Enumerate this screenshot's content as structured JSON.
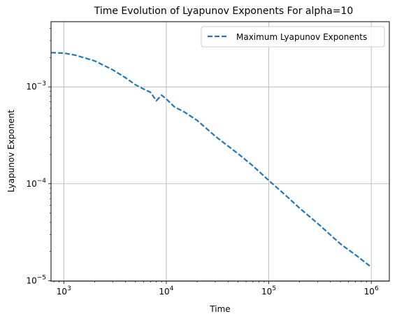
{
  "chart_data": {
    "type": "line",
    "title": "Time Evolution of Lyapunov Exponents For alpha=10",
    "xlabel": "Time",
    "ylabel": "Lyapunov Exponent",
    "xscale": "log",
    "yscale": "log",
    "xlim": [
      750,
      1500000
    ],
    "ylim": [
      9.9e-06,
      0.0047
    ],
    "x_ticks": [
      {
        "value": 1000,
        "base": "10",
        "exp": "3"
      },
      {
        "value": 10000,
        "base": "10",
        "exp": "4"
      },
      {
        "value": 100000,
        "base": "10",
        "exp": "5"
      },
      {
        "value": 1000000,
        "base": "10",
        "exp": "6"
      }
    ],
    "y_ticks": [
      {
        "value": 1e-05,
        "base": "10",
        "exp": "−5"
      },
      {
        "value": 0.0001,
        "base": "10",
        "exp": "−4"
      },
      {
        "value": 0.001,
        "base": "10",
        "exp": "−3"
      }
    ],
    "grid": true,
    "legend_position": "top-right",
    "series": [
      {
        "name": "Maximum Lyapunov Exponents",
        "color": "#1f77b4",
        "linestyle": "dashed",
        "x": [
          750,
          1000,
          1300,
          2000,
          3000,
          4000,
          5000,
          6000,
          7000,
          8000,
          9000,
          10000,
          12000,
          15000,
          20000,
          30000,
          40000,
          50000,
          70000,
          100000,
          150000,
          200000,
          300000,
          500000,
          700000,
          1000000
        ],
        "y": [
          0.00225,
          0.00223,
          0.00212,
          0.00185,
          0.0015,
          0.00124,
          0.00105,
          0.00095,
          0.00088,
          0.00072,
          0.00082,
          0.00075,
          0.00062,
          0.00055,
          0.00045,
          0.00031,
          0.000245,
          0.000205,
          0.000153,
          0.000108,
          7.4e-05,
          5.6e-05,
          3.9e-05,
          2.4e-05,
          1.85e-05,
          1.38e-05
        ]
      }
    ]
  }
}
